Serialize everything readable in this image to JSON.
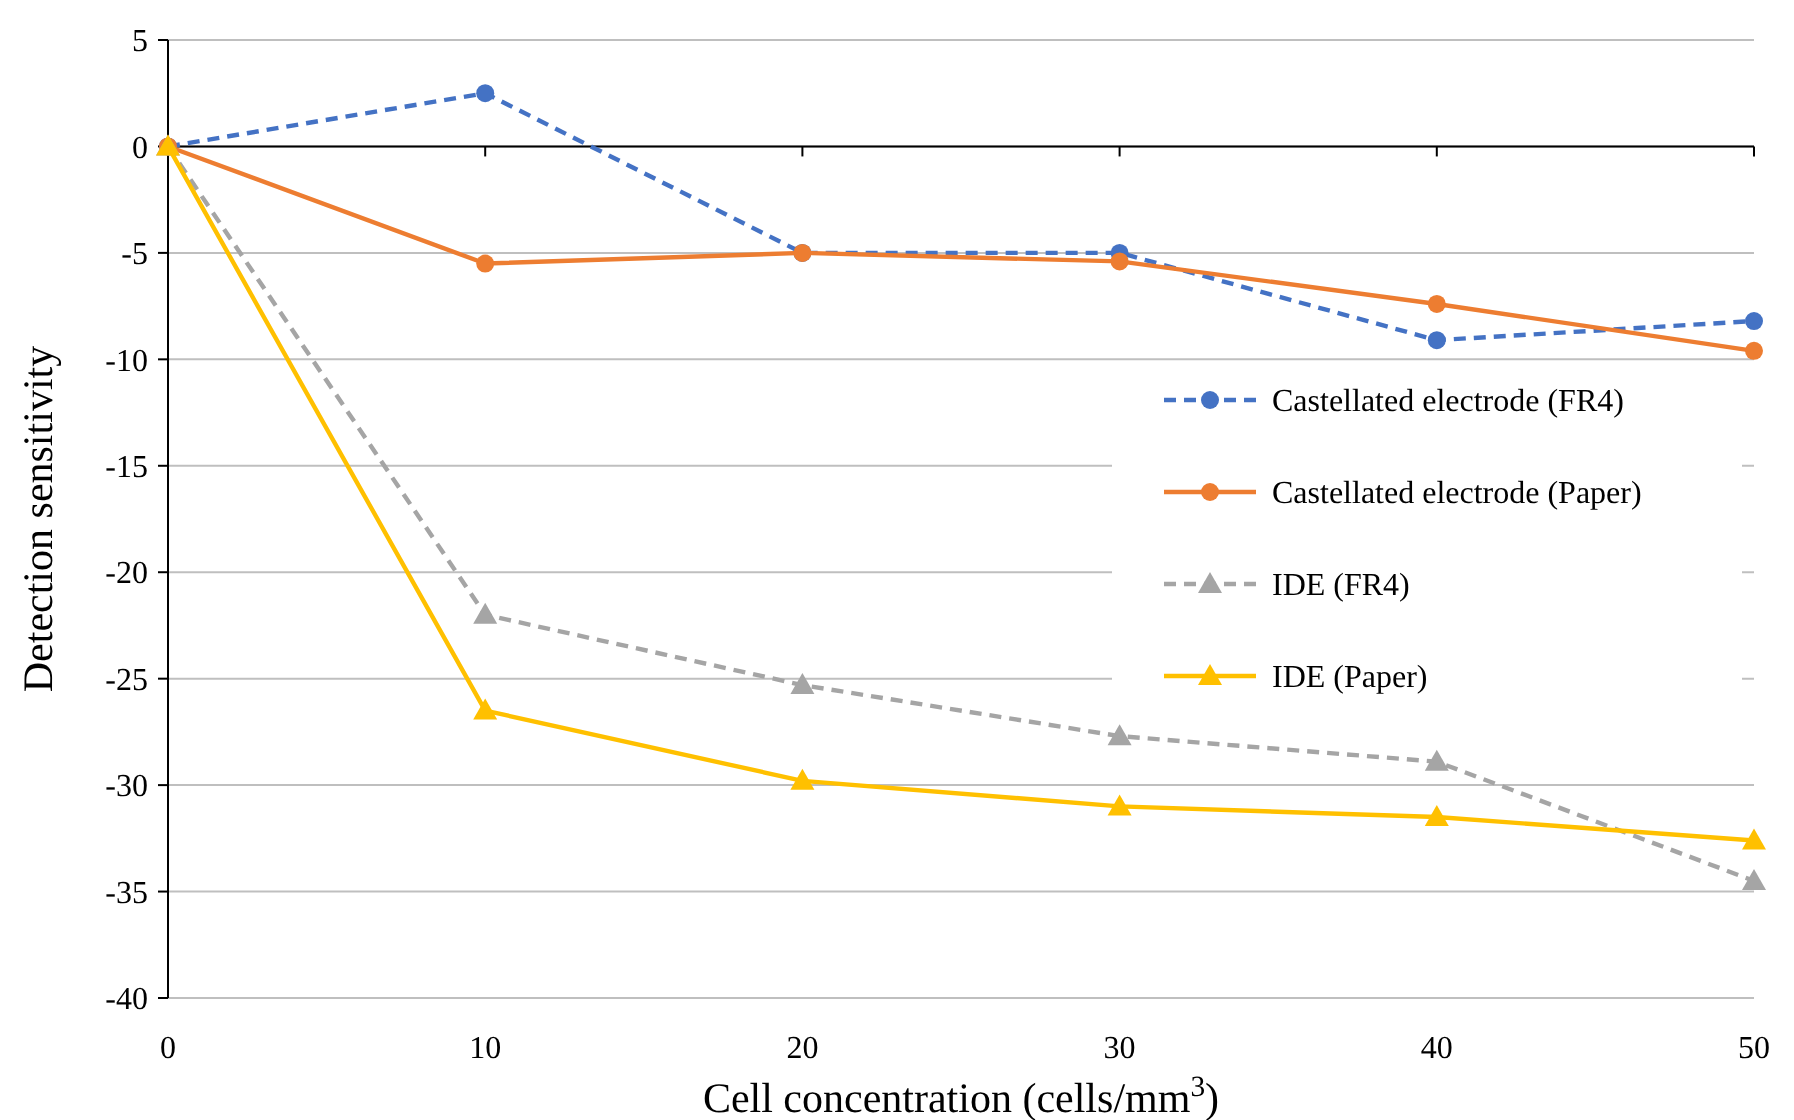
{
  "chart_data": {
    "type": "line",
    "xlabel": "Cell concentration (cells/mm$^{3}$)",
    "ylabel": "Detection sensitivity",
    "x": [
      0,
      10,
      20,
      30,
      40,
      50
    ],
    "xlim": [
      0,
      50
    ],
    "xticks": [
      0,
      10,
      20,
      30,
      40,
      50
    ],
    "ylim": [
      -40,
      5
    ],
    "yticks": [
      -40,
      -35,
      -30,
      -25,
      -20,
      -15,
      -10,
      -5,
      0,
      5
    ],
    "grid": "y",
    "legend": "right",
    "series": [
      {
        "name": "Castellated electrode (FR4)",
        "color": "#4472c4",
        "marker": "circle",
        "line_style": "dashed",
        "values": [
          0,
          2.5,
          -5.0,
          -5.0,
          -9.1,
          -8.2
        ]
      },
      {
        "name": "Castellated electrode (Paper)",
        "color": "#ed7d31",
        "marker": "circle",
        "line_style": "solid",
        "values": [
          0,
          -5.5,
          -5.0,
          -5.4,
          -7.4,
          -9.6
        ]
      },
      {
        "name": "IDE (FR4)",
        "color": "#a5a5a5",
        "marker": "triangle",
        "line_style": "dashed",
        "values": [
          0,
          -22.0,
          -25.3,
          -27.7,
          -28.9,
          -34.5
        ]
      },
      {
        "name": "IDE (Paper)",
        "color": "#ffc000",
        "marker": "triangle",
        "line_style": "solid",
        "values": [
          0,
          -26.5,
          -29.8,
          -31.0,
          -31.5,
          -32.6
        ]
      }
    ]
  }
}
